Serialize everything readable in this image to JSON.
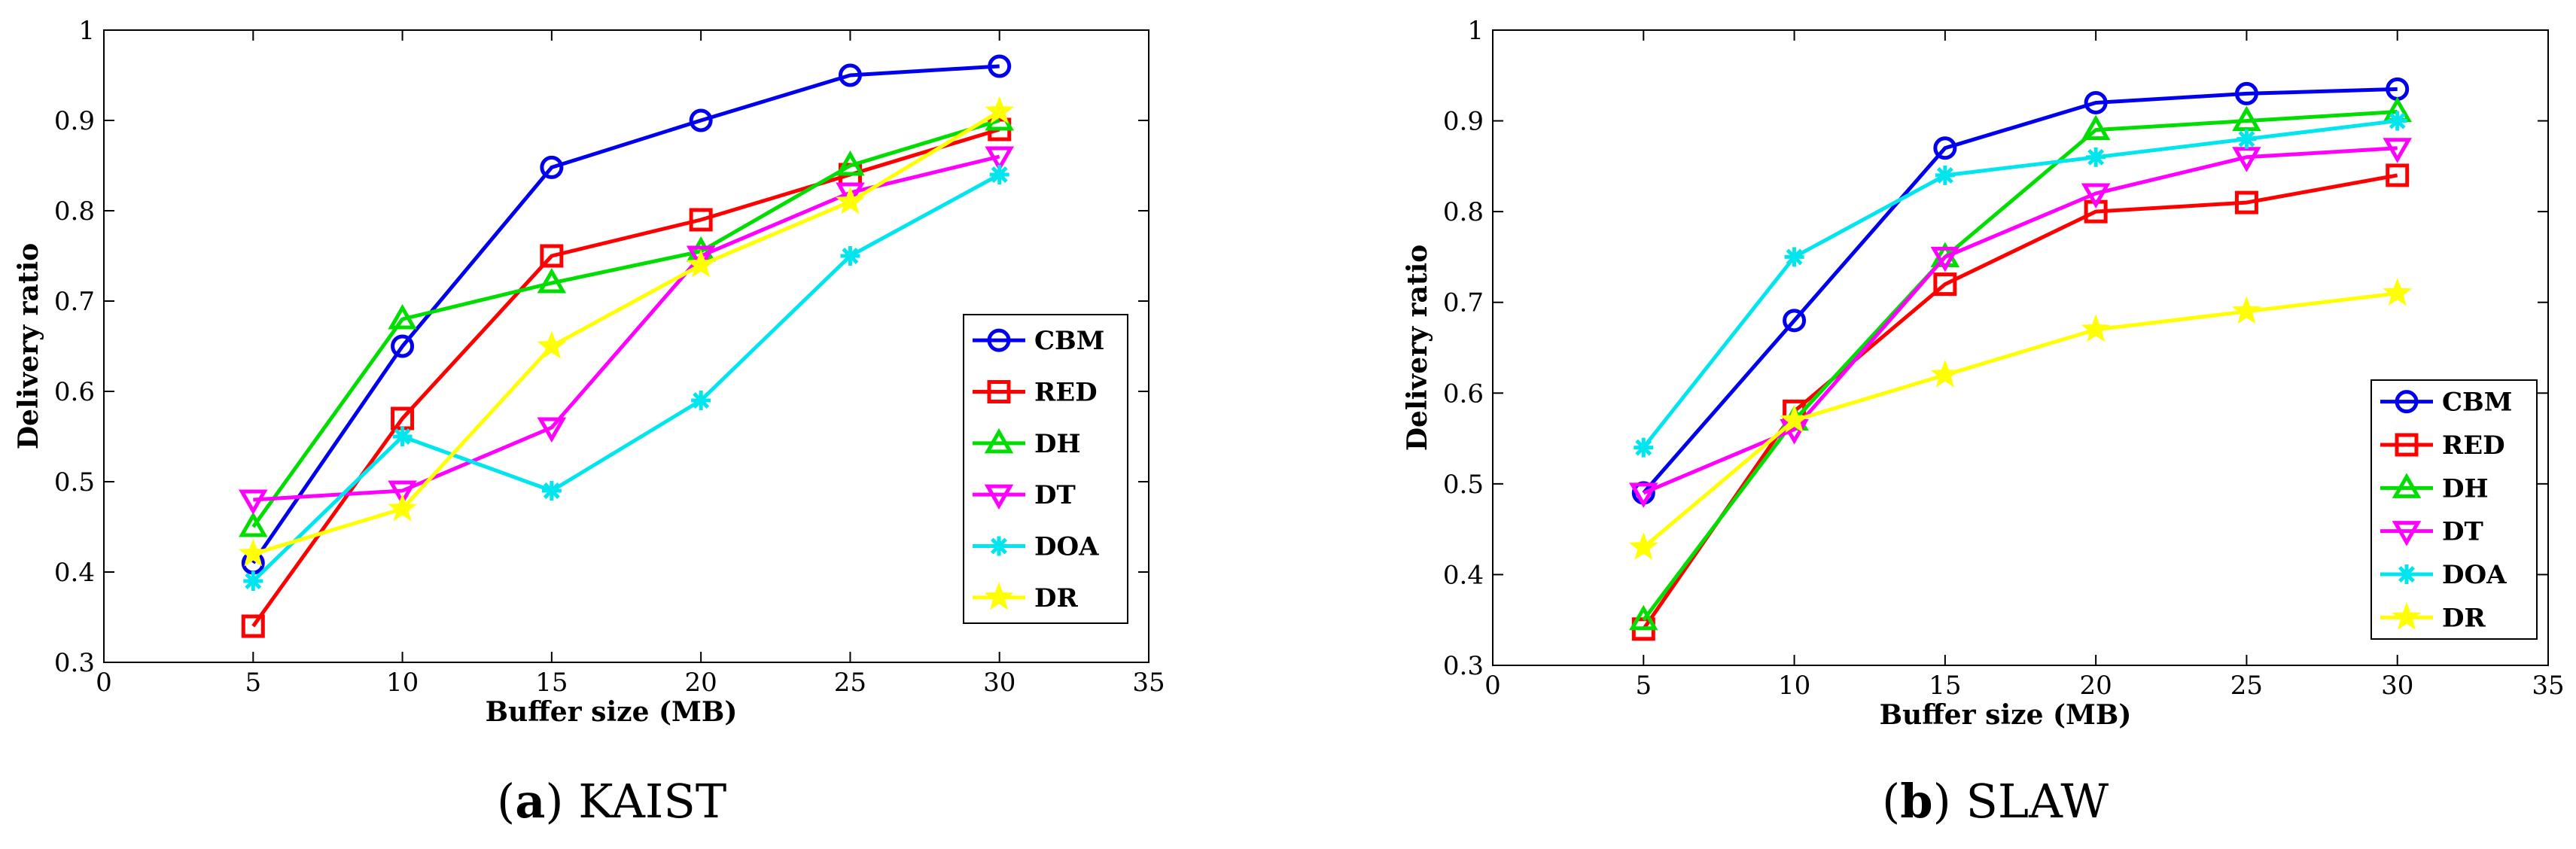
{
  "chart_data": [
    {
      "type": "line",
      "caption_label": "a",
      "caption_text": "KAIST",
      "xlabel": "Buffer size (MB)",
      "ylabel": "Delivery ratio",
      "xlim": [
        0,
        35
      ],
      "ylim": [
        0.3,
        1
      ],
      "xticks": [
        "0",
        "5",
        "10",
        "15",
        "20",
        "25",
        "30",
        "35"
      ],
      "yticks": [
        "0.3",
        "0.4",
        "0.5",
        "0.6",
        "0.7",
        "0.8",
        "0.9",
        "1"
      ],
      "x": [
        5,
        10,
        15,
        20,
        25,
        30
      ],
      "legend_position": "right",
      "series": [
        {
          "name": "CBM",
          "color": "#0000ee",
          "marker": "circle",
          "values": [
            0.41,
            0.65,
            0.848,
            0.9,
            0.95,
            0.96
          ]
        },
        {
          "name": "RED",
          "color": "#ff0000",
          "marker": "square",
          "values": [
            0.34,
            0.57,
            0.75,
            0.79,
            0.84,
            0.89
          ]
        },
        {
          "name": "DH",
          "color": "#00dd00",
          "marker": "triangle-up",
          "values": [
            0.45,
            0.68,
            0.72,
            0.755,
            0.85,
            0.9
          ]
        },
        {
          "name": "DT",
          "color": "#ff00ff",
          "marker": "triangle-down",
          "values": [
            0.48,
            0.49,
            0.56,
            0.75,
            0.82,
            0.86
          ]
        },
        {
          "name": "DOA",
          "color": "#00e5ee",
          "marker": "asterisk",
          "values": [
            0.39,
            0.55,
            0.49,
            0.59,
            0.75,
            0.84
          ]
        },
        {
          "name": "DR",
          "color": "#ffff00",
          "marker": "star",
          "values": [
            0.42,
            0.47,
            0.65,
            0.74,
            0.81,
            0.91
          ]
        }
      ]
    },
    {
      "type": "line",
      "caption_label": "b",
      "caption_text": "SLAW",
      "xlabel": "Buffer size (MB)",
      "ylabel": "Delivery ratio",
      "xlim": [
        0,
        35
      ],
      "ylim": [
        0.3,
        1
      ],
      "xticks": [
        "0",
        "5",
        "10",
        "15",
        "20",
        "25",
        "30",
        "35"
      ],
      "yticks": [
        "0.3",
        "0.4",
        "0.5",
        "0.6",
        "0.7",
        "0.8",
        "0.9",
        "1"
      ],
      "x": [
        5,
        10,
        15,
        20,
        25,
        30
      ],
      "legend_position": "bottom-right",
      "series": [
        {
          "name": "CBM",
          "color": "#0000ee",
          "marker": "circle",
          "values": [
            0.49,
            0.68,
            0.87,
            0.92,
            0.93,
            0.935
          ]
        },
        {
          "name": "RED",
          "color": "#ff0000",
          "marker": "square",
          "values": [
            0.34,
            0.58,
            0.72,
            0.8,
            0.81,
            0.84
          ]
        },
        {
          "name": "DH",
          "color": "#00dd00",
          "marker": "triangle-up",
          "values": [
            0.35,
            0.57,
            0.75,
            0.89,
            0.9,
            0.91
          ]
        },
        {
          "name": "DT",
          "color": "#ff00ff",
          "marker": "triangle-down",
          "values": [
            0.49,
            0.56,
            0.75,
            0.82,
            0.86,
            0.87
          ]
        },
        {
          "name": "DOA",
          "color": "#00e5ee",
          "marker": "asterisk",
          "values": [
            0.54,
            0.75,
            0.84,
            0.86,
            0.88,
            0.9
          ]
        },
        {
          "name": "DR",
          "color": "#ffff00",
          "marker": "star",
          "values": [
            0.43,
            0.57,
            0.62,
            0.67,
            0.69,
            0.71
          ]
        }
      ]
    }
  ]
}
